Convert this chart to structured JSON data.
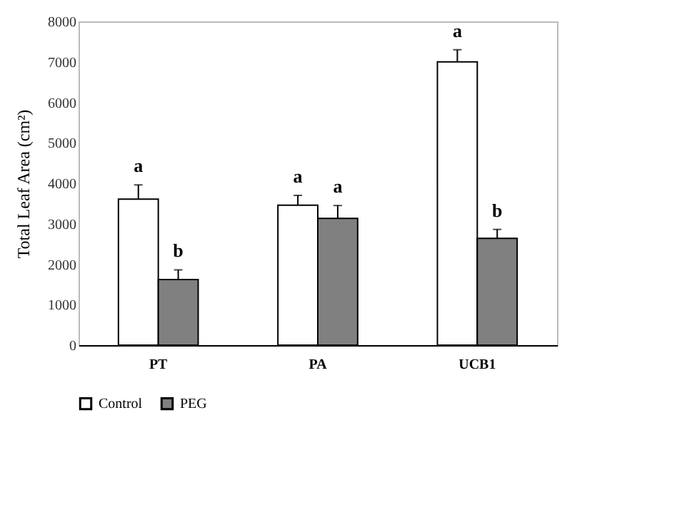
{
  "chart_data": {
    "type": "bar",
    "ylabel": "Total Leaf Area (cm²)",
    "categories": [
      "PT",
      "PA",
      "UCB1"
    ],
    "series": [
      {
        "name": "Control",
        "color": "#ffffff",
        "values": [
          3610,
          3460,
          7000
        ],
        "errors": [
          [
            3610,
            3960
          ],
          [
            3460,
            3700
          ],
          [
            7000,
            7300
          ]
        ]
      },
      {
        "name": "PEG",
        "color": "#808080",
        "values": [
          1620,
          3130,
          2640
        ],
        "errors": [
          [
            1620,
            1860
          ],
          [
            3130,
            3450
          ],
          [
            2640,
            2860
          ]
        ]
      }
    ],
    "ylim": [
      0,
      8000
    ],
    "yticks": [
      0,
      1000,
      2000,
      3000,
      4000,
      5000,
      6000,
      7000,
      8000
    ],
    "grid": false,
    "legend": "bottom",
    "annotations": [
      "a",
      "b",
      "a",
      "a",
      "a",
      "b"
    ]
  }
}
